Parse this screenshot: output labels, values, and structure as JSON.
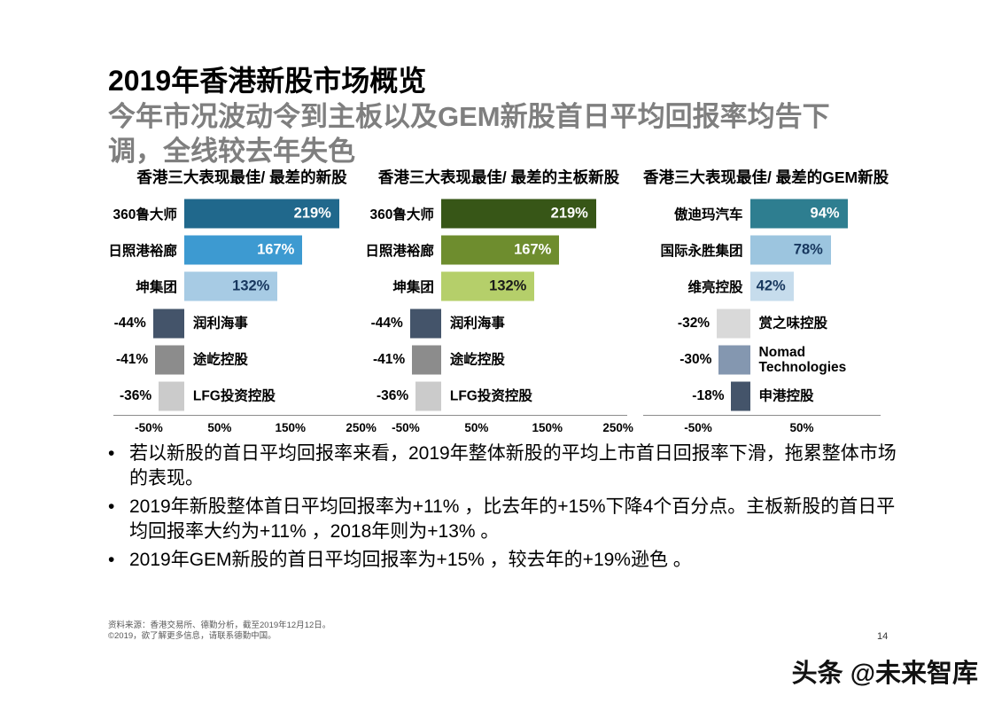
{
  "slide": {
    "title": "2019年香港新股市场概览",
    "subtitle_lines": [
      "今年市况波动令到主板以及GEM新股首日平均回报率均告下",
      "调，全线较去年失色"
    ],
    "bullet_char": "•",
    "bullets": [
      "若以新股的首日平均回报率来看，2019年整体新股的平均上市首日回报率下滑，拖累整体市场的表现。",
      "2019年新股整体首日平均回报率为+11% ，比去年的+15%下降4个百分点。主板新股的首日平均回报率大约为+11% ，2018年则为+13% 。",
      "2019年GEM新股的首日平均回报率为+15% ，较去年的+19%逊色 。"
    ],
    "source_note": "资料来源：香港交易所、德勤分析，截至2019年12月12日。",
    "copyright_note": "©2019，欲了解更多信息，请联系德勤中国。",
    "page_number": "14",
    "watermark": "头条 @未来智库"
  },
  "colors": {
    "subtitle_gray": "#7f7f7f",
    "axis_line": "#8c8c8c",
    "text_black": "#000000"
  },
  "chart_data": [
    {
      "type": "bar",
      "orientation": "horizontal",
      "title": "香港三大表现最佳/ 最差的新股",
      "xlabel": "",
      "xlim": [
        -100,
        263
      ],
      "ticks": [
        {
          "value": -50,
          "label": "-50%"
        },
        {
          "value": 50,
          "label": "50%"
        },
        {
          "value": 150,
          "label": "150%"
        },
        {
          "value": 250,
          "label": "250%"
        }
      ],
      "rows": [
        {
          "label": "360鲁大师",
          "value": 219,
          "value_label": "219%",
          "bar_color": "#20688c",
          "value_text_color": "#ffffff"
        },
        {
          "label": "日照港裕廊",
          "value": 167,
          "value_label": "167%",
          "bar_color": "#3d9ad1",
          "value_text_color": "#ffffff"
        },
        {
          "label": "坤集团",
          "value": 132,
          "value_label": "132%",
          "bar_color": "#a7cbe4",
          "value_text_color": "#17375e"
        },
        {
          "label": "润利海事",
          "value": -44,
          "value_label": "-44%",
          "bar_color": "#44546a"
        },
        {
          "label": "途屹控股",
          "value": -41,
          "value_label": "-41%",
          "bar_color": "#8c8c8c"
        },
        {
          "label": "LFG投资控股",
          "value": -36,
          "value_label": "-36%",
          "bar_color": "#cbcbcb"
        }
      ]
    },
    {
      "type": "bar",
      "orientation": "horizontal",
      "title": "香港三大表现最佳/ 最差的主板新股",
      "xlabel": "",
      "xlim": [
        -100,
        263
      ],
      "ticks": [
        {
          "value": -50,
          "label": "-50%"
        },
        {
          "value": 50,
          "label": "50%"
        },
        {
          "value": 150,
          "label": "150%"
        },
        {
          "value": 250,
          "label": "250%"
        }
      ],
      "rows": [
        {
          "label": "360鲁大师",
          "value": 219,
          "value_label": "219%",
          "bar_color": "#375617",
          "value_text_color": "#ffffff"
        },
        {
          "label": "日照港裕廊",
          "value": 167,
          "value_label": "167%",
          "bar_color": "#6e8d2e",
          "value_text_color": "#ffffff"
        },
        {
          "label": "坤集团",
          "value": 132,
          "value_label": "132%",
          "bar_color": "#b5cf6a",
          "value_text_color": "#1a1a1a"
        },
        {
          "label": "润利海事",
          "value": -44,
          "value_label": "-44%",
          "bar_color": "#44546a"
        },
        {
          "label": "途屹控股",
          "value": -41,
          "value_label": "-41%",
          "bar_color": "#8c8c8c"
        },
        {
          "label": "LFG投资控股",
          "value": -36,
          "value_label": "-36%",
          "bar_color": "#cbcbcb"
        }
      ]
    },
    {
      "type": "bar",
      "orientation": "horizontal",
      "title": "香港三大表现最佳/ 最差的GEM新股",
      "xlabel": "",
      "xlim": [
        -103,
        126
      ],
      "ticks": [
        {
          "value": -50,
          "label": "-50%"
        },
        {
          "value": 50,
          "label": "50%"
        }
      ],
      "rows": [
        {
          "label": "傲迪玛汽车",
          "value": 94,
          "value_label": "94%",
          "bar_color": "#2e7e90",
          "value_text_color": "#ffffff"
        },
        {
          "label": "国际永胜集团",
          "value": 78,
          "value_label": "78%",
          "bar_color": "#9cc5df",
          "value_text_color": "#17375e"
        },
        {
          "label": "维亮控股",
          "value": 42,
          "value_label": "42%",
          "bar_color": "#c6dcec",
          "value_text_color": "#17375e"
        },
        {
          "label": "赏之味控股",
          "value": -32,
          "value_label": "-32%",
          "bar_color": "#d9d9d9"
        },
        {
          "label": "Nomad Technologies",
          "value": -30,
          "value_label": "-30%",
          "bar_color": "#8497b0"
        },
        {
          "label": "申港控股",
          "value": -18,
          "value_label": "-18%",
          "bar_color": "#44546a"
        }
      ]
    }
  ]
}
